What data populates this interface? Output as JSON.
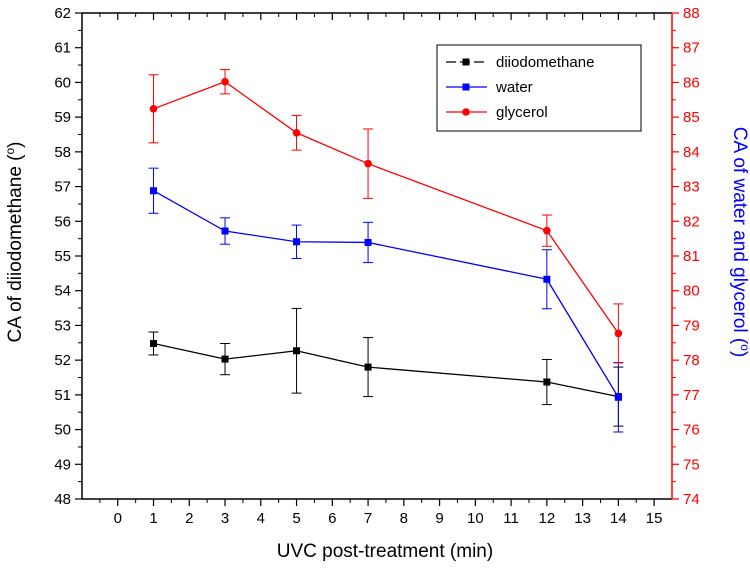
{
  "chart_data": {
    "type": "line",
    "x": [
      1,
      3,
      5,
      7,
      12,
      14
    ],
    "xlabel": "UVC post-treatment (min)",
    "xlim": [
      -1,
      15.5
    ],
    "xticks": [
      0,
      1,
      2,
      3,
      4,
      5,
      6,
      7,
      8,
      9,
      10,
      11,
      12,
      13,
      14,
      15
    ],
    "ylabel_left": "CA of diiodomethane (",
    "ylabel_left_sup": "o",
    "ylabel_left_close": ")",
    "ylim_left": [
      48,
      62
    ],
    "yticks_left": [
      48,
      49,
      50,
      51,
      52,
      53,
      54,
      55,
      56,
      57,
      58,
      59,
      60,
      61,
      62
    ],
    "ylabel_right": "CA of water and glycerol (",
    "ylabel_right_sup": "o",
    "ylabel_right_close": ")",
    "ylim_right": [
      74,
      88
    ],
    "yticks_right": [
      74,
      75,
      76,
      77,
      78,
      79,
      80,
      81,
      82,
      83,
      84,
      85,
      86,
      87,
      88
    ],
    "legend_position": "top-right",
    "grid": false,
    "series": [
      {
        "name": "diiodomethane",
        "axis": "left",
        "color": "#000000",
        "marker": "square",
        "values": [
          52.48,
          52.03,
          52.27,
          51.8,
          51.37,
          50.95
        ],
        "errors": [
          0.33,
          0.45,
          1.22,
          0.85,
          0.65,
          0.85
        ]
      },
      {
        "name": "water",
        "axis": "right",
        "color": "#0000ff",
        "marker": "square",
        "values": [
          82.88,
          81.72,
          81.41,
          81.39,
          80.33,
          76.93
        ],
        "errors": [
          0.65,
          0.38,
          0.48,
          0.58,
          0.85,
          1.0
        ]
      },
      {
        "name": "glycerol",
        "axis": "right",
        "color": "#ff0000",
        "marker": "circle",
        "values": [
          85.24,
          86.02,
          84.55,
          83.66,
          81.73,
          78.77
        ],
        "errors": [
          0.98,
          0.35,
          0.5,
          1.0,
          0.45,
          0.85
        ]
      }
    ]
  }
}
